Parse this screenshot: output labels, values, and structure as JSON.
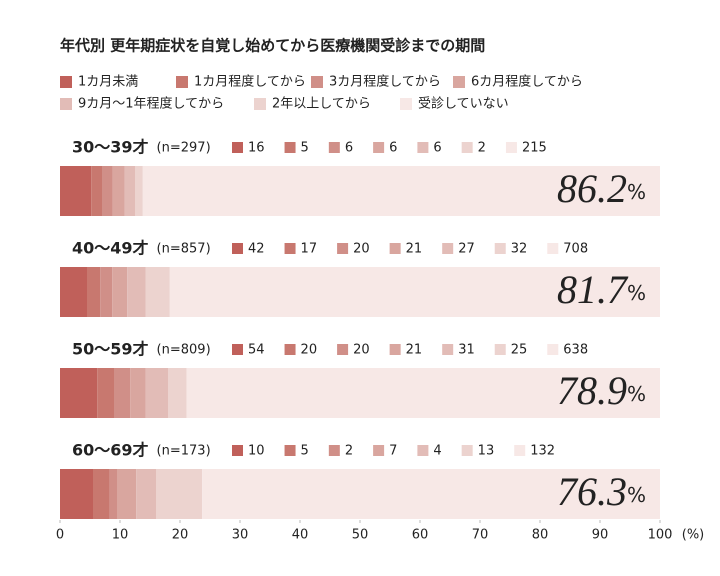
{
  "chart_data": {
    "type": "stacked-bar-horizontal",
    "title": "年代別 更年期症状を自覚し始めてから医療機関受診までの期間",
    "categories": [
      "30〜39才",
      "40〜49才",
      "50〜59才",
      "60〜69才"
    ],
    "n_labels": [
      "(n=297)",
      "(n=857)",
      "(n=809)",
      "(n=173)"
    ],
    "unit": "%",
    "x_label": "(%)",
    "xlim": [
      0,
      100
    ],
    "xticks": [
      0,
      10,
      20,
      30,
      40,
      50,
      60,
      70,
      80,
      90,
      100
    ],
    "series": [
      {
        "name": "1カ月未満",
        "color": "#c0605a",
        "counts": [
          16,
          42,
          54,
          10
        ],
        "values": [
          5.2,
          4.5,
          6.2,
          5.5
        ]
      },
      {
        "name": "1カ月程度してから",
        "color": "#c8786f",
        "counts": [
          5,
          17,
          20,
          5
        ],
        "values": [
          1.8,
          2.2,
          2.8,
          2.8
        ]
      },
      {
        "name": "3カ月程度してから",
        "color": "#d08f88",
        "counts": [
          6,
          20,
          20,
          2
        ],
        "values": [
          1.8,
          2.0,
          2.7,
          1.2
        ]
      },
      {
        "name": "6カ月程度してから",
        "color": "#d9a69f",
        "counts": [
          6,
          21,
          21,
          7
        ],
        "values": [
          2.0,
          2.5,
          2.6,
          3.2
        ]
      },
      {
        "name": "9カ月〜1年程度してから",
        "color": "#e2bcb7",
        "counts": [
          6,
          27,
          31,
          4
        ],
        "values": [
          1.7,
          3.1,
          3.7,
          3.3
        ]
      },
      {
        "name": "2年以上してから",
        "color": "#ecd3cf",
        "counts": [
          2,
          32,
          25,
          13
        ],
        "values": [
          1.3,
          4.0,
          3.1,
          7.7
        ]
      },
      {
        "name": "受診していない",
        "color": "#f7e8e6",
        "counts": [
          215,
          708,
          638,
          132
        ],
        "values": [
          86.2,
          81.7,
          78.9,
          76.3
        ]
      }
    ]
  }
}
